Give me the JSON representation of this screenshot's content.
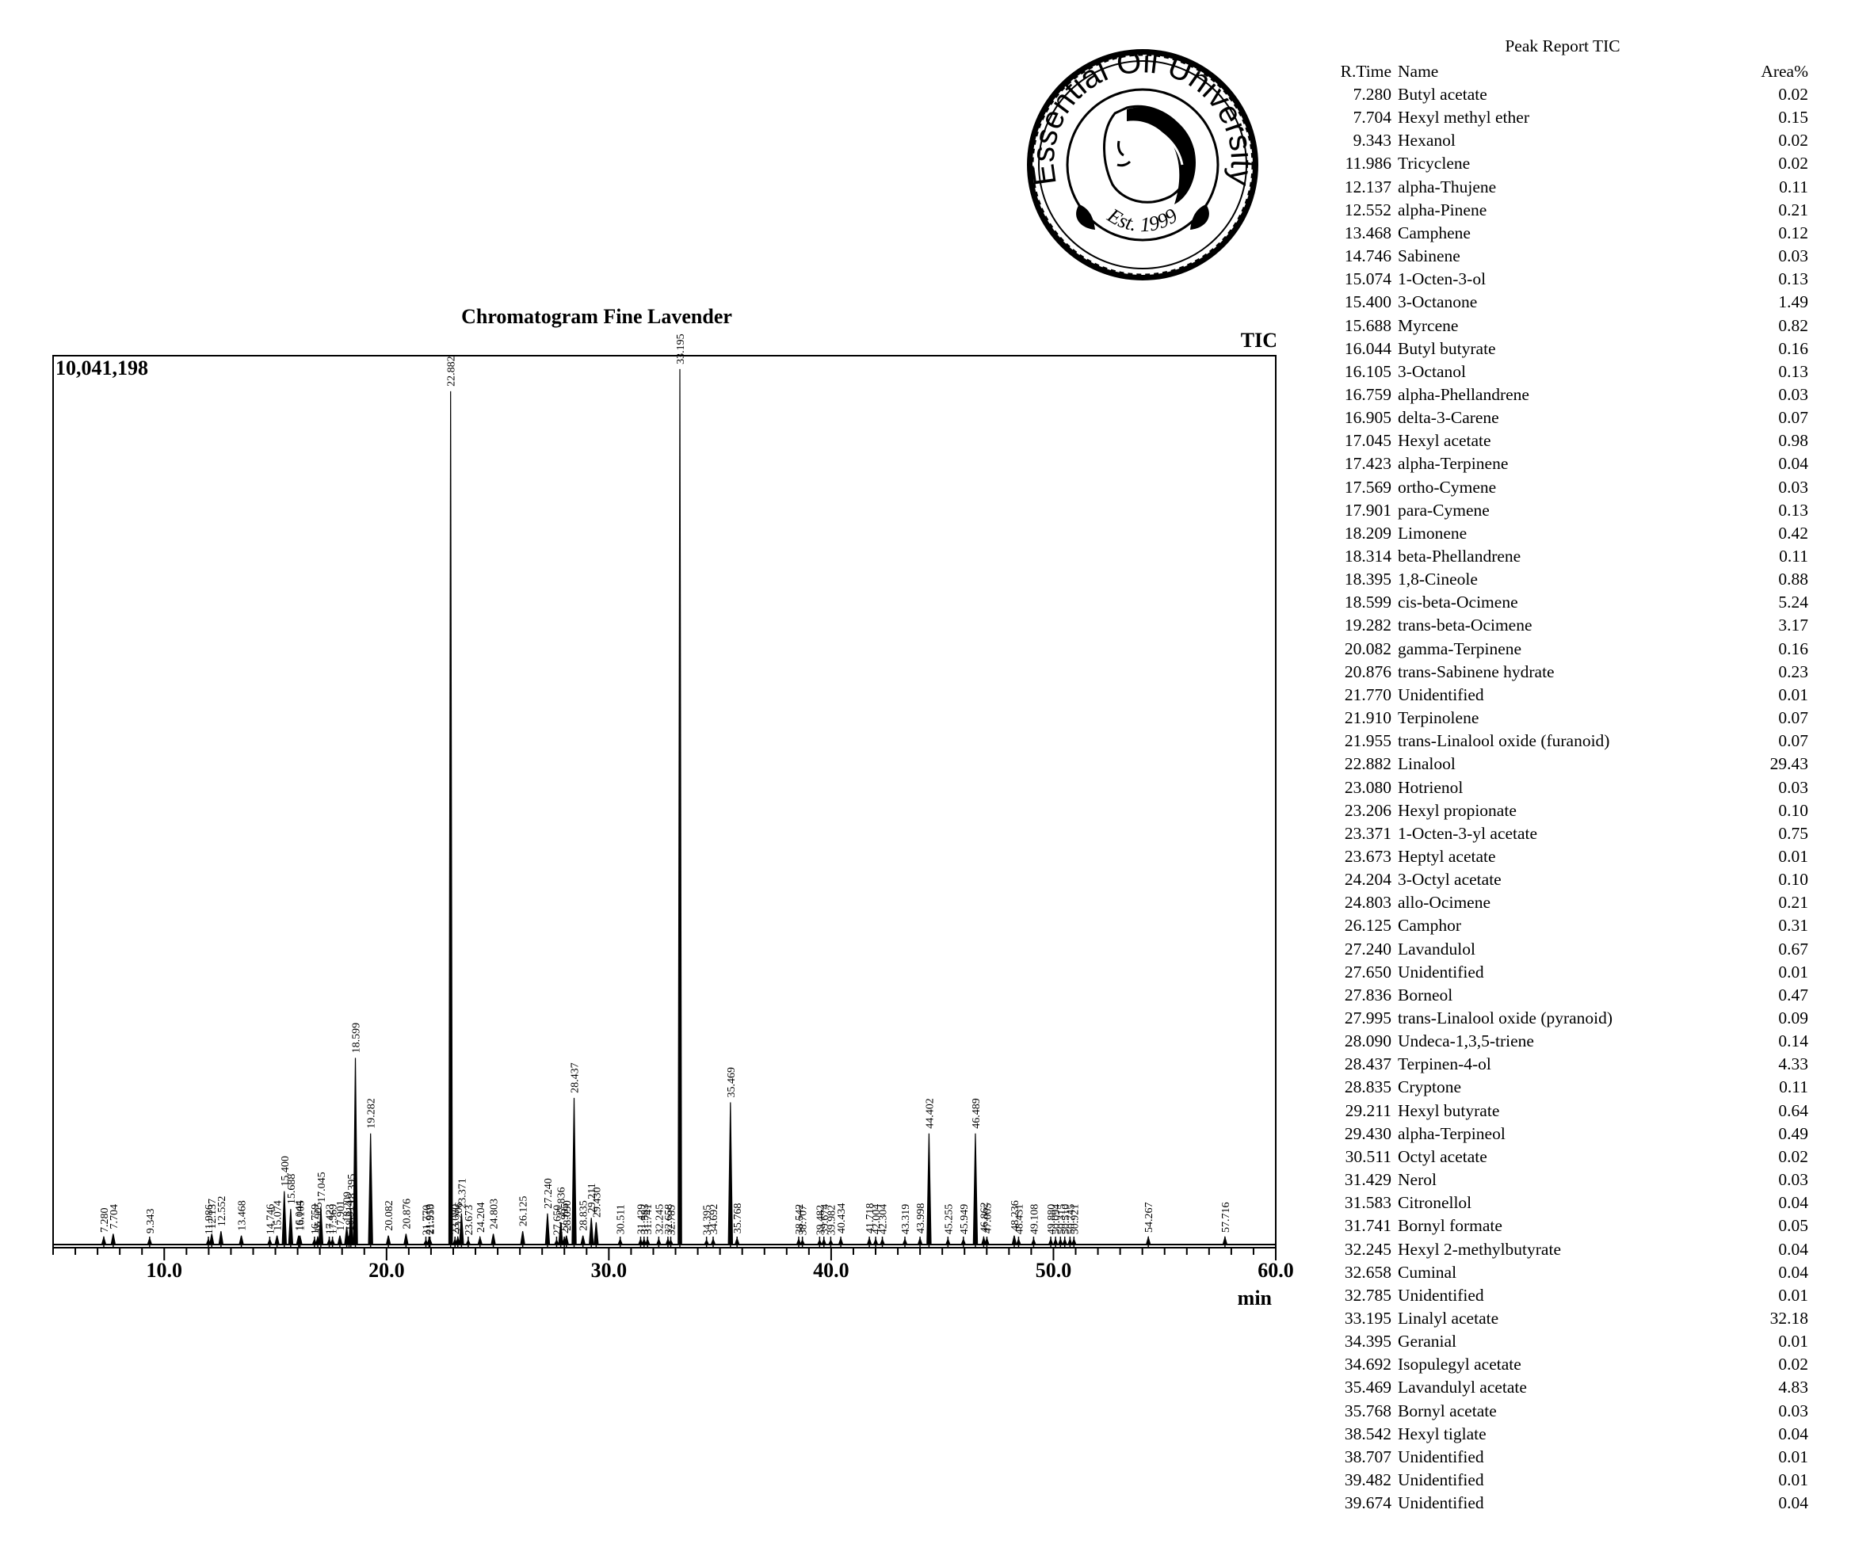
{
  "logo": {
    "arc_text": "Essential Oil University",
    "established": "Est. 1999"
  },
  "chart_data": {
    "type": "line",
    "title": "Chromatogram Fine Lavender",
    "signal": "TIC",
    "y_max_label": "10,041,198",
    "xlabel": "min",
    "xlim": [
      5.0,
      60.0
    ],
    "ylim": [
      0,
      10041198
    ],
    "x_tick_labels": [
      "10.0",
      "20.0",
      "30.0",
      "40.0",
      "50.0",
      "60.0"
    ],
    "x_ticks": [
      10,
      20,
      30,
      40,
      50,
      60
    ],
    "peaks": [
      {
        "t": 7.28,
        "label": "7.280",
        "h": 0.008
      },
      {
        "t": 7.704,
        "label": "7.704",
        "h": 0.012
      },
      {
        "t": 9.343,
        "label": "9.343",
        "h": 0.007
      },
      {
        "t": 11.986,
        "label": "11.986",
        "h": 0.006
      },
      {
        "t": 12.137,
        "label": "12.137",
        "h": 0.012
      },
      {
        "t": 12.552,
        "label": "12.552",
        "h": 0.015
      },
      {
        "t": 13.468,
        "label": "13.468",
        "h": 0.01
      },
      {
        "t": 14.746,
        "label": "14.746",
        "h": 0.006
      },
      {
        "t": 15.074,
        "label": "15.074",
        "h": 0.01
      },
      {
        "t": 15.4,
        "label": "15.400",
        "h": 0.06
      },
      {
        "t": 15.688,
        "label": "15.688",
        "h": 0.04
      },
      {
        "t": 16.044,
        "label": "16.044",
        "h": 0.01
      },
      {
        "t": 16.105,
        "label": "16.105",
        "h": 0.01
      },
      {
        "t": 16.759,
        "label": "16.759",
        "h": 0.006
      },
      {
        "t": 16.905,
        "label": "16.905",
        "h": 0.008
      },
      {
        "t": 17.045,
        "label": "17.045",
        "h": 0.042
      },
      {
        "t": 17.423,
        "label": "17.423",
        "h": 0.006
      },
      {
        "t": 17.569,
        "label": "17.569",
        "h": 0.006
      },
      {
        "t": 17.901,
        "label": "17.901",
        "h": 0.01
      },
      {
        "t": 18.209,
        "label": "18.209",
        "h": 0.02
      },
      {
        "t": 18.314,
        "label": "18.314",
        "h": 0.01
      },
      {
        "t": 18.395,
        "label": "18.395",
        "h": 0.04
      },
      {
        "t": 18.599,
        "label": "18.599",
        "h": 0.21
      },
      {
        "t": 19.282,
        "label": "19.282",
        "h": 0.125
      },
      {
        "t": 20.082,
        "label": "20.082",
        "h": 0.01
      },
      {
        "t": 20.876,
        "label": "20.876",
        "h": 0.012
      },
      {
        "t": 21.77,
        "label": "21.770",
        "h": 0.005
      },
      {
        "t": 21.91,
        "label": "21.910",
        "h": 0.006
      },
      {
        "t": 21.955,
        "label": "21.955",
        "h": 0.006
      },
      {
        "t": 22.882,
        "label": "22.882",
        "h": 0.96
      },
      {
        "t": 23.08,
        "label": "23.080",
        "h": 0.006
      },
      {
        "t": 23.206,
        "label": "23.206",
        "h": 0.008
      },
      {
        "t": 23.371,
        "label": "23.371",
        "h": 0.035
      },
      {
        "t": 23.673,
        "label": "23.673",
        "h": 0.005
      },
      {
        "t": 24.204,
        "label": "24.204",
        "h": 0.008
      },
      {
        "t": 24.803,
        "label": "24.803",
        "h": 0.012
      },
      {
        "t": 26.125,
        "label": "26.125",
        "h": 0.015
      },
      {
        "t": 27.24,
        "label": "27.240",
        "h": 0.035
      },
      {
        "t": 27.65,
        "label": "27.650",
        "h": 0.005
      },
      {
        "t": 27.836,
        "label": "27.836",
        "h": 0.025
      },
      {
        "t": 27.995,
        "label": "27.995",
        "h": 0.007
      },
      {
        "t": 28.09,
        "label": "28.090",
        "h": 0.01
      },
      {
        "t": 28.437,
        "label": "28.437",
        "h": 0.165
      },
      {
        "t": 28.835,
        "label": "28.835",
        "h": 0.01
      },
      {
        "t": 29.211,
        "label": "29.211",
        "h": 0.03
      },
      {
        "t": 29.43,
        "label": "29.430",
        "h": 0.025
      },
      {
        "t": 30.511,
        "label": "30.511",
        "h": 0.006
      },
      {
        "t": 31.429,
        "label": "31.429",
        "h": 0.006
      },
      {
        "t": 31.583,
        "label": "31.583",
        "h": 0.006
      },
      {
        "t": 31.741,
        "label": "31.741",
        "h": 0.006
      },
      {
        "t": 32.245,
        "label": "32.245",
        "h": 0.006
      },
      {
        "t": 32.658,
        "label": "32.658",
        "h": 0.006
      },
      {
        "t": 32.785,
        "label": "32.785",
        "h": 0.005
      },
      {
        "t": 33.195,
        "label": "33.195",
        "h": 0.985
      },
      {
        "t": 34.395,
        "label": "34.395",
        "h": 0.005
      },
      {
        "t": 34.692,
        "label": "34.692",
        "h": 0.006
      },
      {
        "t": 35.469,
        "label": "35.469",
        "h": 0.16
      },
      {
        "t": 35.768,
        "label": "35.768",
        "h": 0.007
      },
      {
        "t": 38.542,
        "label": "38.542",
        "h": 0.006
      },
      {
        "t": 38.707,
        "label": "38.707",
        "h": 0.005
      },
      {
        "t": 39.482,
        "label": "39.482",
        "h": 0.005
      },
      {
        "t": 39.674,
        "label": "39.674",
        "h": 0.006
      },
      {
        "t": 39.982,
        "label": "39.982",
        "h": 0.005
      },
      {
        "t": 40.434,
        "label": "40.434",
        "h": 0.007
      },
      {
        "t": 41.718,
        "label": "41.718",
        "h": 0.007
      },
      {
        "t": 42.004,
        "label": "42.004",
        "h": 0.006
      },
      {
        "t": 42.304,
        "label": "42.304",
        "h": 0.006
      },
      {
        "t": 43.319,
        "label": "43.319",
        "h": 0.006
      },
      {
        "t": 43.998,
        "label": "43.998",
        "h": 0.007
      },
      {
        "t": 44.402,
        "label": "44.402",
        "h": 0.125
      },
      {
        "t": 45.255,
        "label": "45.255",
        "h": 0.006
      },
      {
        "t": 45.949,
        "label": "45.949",
        "h": 0.006
      },
      {
        "t": 46.489,
        "label": "46.489",
        "h": 0.125
      },
      {
        "t": 46.862,
        "label": "46.862",
        "h": 0.008
      },
      {
        "t": 47.005,
        "label": "47.005",
        "h": 0.007
      },
      {
        "t": 48.236,
        "label": "48.236",
        "h": 0.01
      },
      {
        "t": 48.431,
        "label": "48.431",
        "h": 0.006
      },
      {
        "t": 49.108,
        "label": "49.108",
        "h": 0.006
      },
      {
        "t": 49.88,
        "label": "49.880",
        "h": 0.006
      },
      {
        "t": 50.094,
        "label": "50.094",
        "h": 0.006
      },
      {
        "t": 50.315,
        "label": "50.315",
        "h": 0.006
      },
      {
        "t": 50.51,
        "label": "50.510",
        "h": 0.006
      },
      {
        "t": 50.745,
        "label": "50.745",
        "h": 0.006
      },
      {
        "t": 50.921,
        "label": "50.921",
        "h": 0.006
      },
      {
        "t": 54.267,
        "label": "54.267",
        "h": 0.008
      },
      {
        "t": 57.716,
        "label": "57.716",
        "h": 0.008
      }
    ]
  },
  "peak_report": {
    "title": "Peak Report TIC",
    "columns": [
      "R.Time",
      "Name",
      "Area%"
    ],
    "rows": [
      [
        "7.280",
        "Butyl acetate",
        "0.02"
      ],
      [
        "7.704",
        "Hexyl methyl ether",
        "0.15"
      ],
      [
        "9.343",
        "Hexanol",
        "0.02"
      ],
      [
        "11.986",
        "Tricyclene",
        "0.02"
      ],
      [
        "12.137",
        "alpha-Thujene",
        "0.11"
      ],
      [
        "12.552",
        "alpha-Pinene",
        "0.21"
      ],
      [
        "13.468",
        "Camphene",
        "0.12"
      ],
      [
        "14.746",
        "Sabinene",
        "0.03"
      ],
      [
        "15.074",
        "1-Octen-3-ol",
        "0.13"
      ],
      [
        "15.400",
        "3-Octanone",
        "1.49"
      ],
      [
        "15.688",
        "Myrcene",
        "0.82"
      ],
      [
        "16.044",
        "Butyl butyrate",
        "0.16"
      ],
      [
        "16.105",
        "3-Octanol",
        "0.13"
      ],
      [
        "16.759",
        "alpha-Phellandrene",
        "0.03"
      ],
      [
        "16.905",
        "delta-3-Carene",
        "0.07"
      ],
      [
        "17.045",
        "Hexyl acetate",
        "0.98"
      ],
      [
        "17.423",
        "alpha-Terpinene",
        "0.04"
      ],
      [
        "17.569",
        "ortho-Cymene",
        "0.03"
      ],
      [
        "17.901",
        "para-Cymene",
        "0.13"
      ],
      [
        "18.209",
        "Limonene",
        "0.42"
      ],
      [
        "18.314",
        "beta-Phellandrene",
        "0.11"
      ],
      [
        "18.395",
        "1,8-Cineole",
        "0.88"
      ],
      [
        "18.599",
        "cis-beta-Ocimene",
        "5.24"
      ],
      [
        "19.282",
        "trans-beta-Ocimene",
        "3.17"
      ],
      [
        "20.082",
        "gamma-Terpinene",
        "0.16"
      ],
      [
        "20.876",
        "trans-Sabinene hydrate",
        "0.23"
      ],
      [
        "21.770",
        "Unidentified",
        "0.01"
      ],
      [
        "21.910",
        "Terpinolene",
        "0.07"
      ],
      [
        "21.955",
        "trans-Linalool oxide (furanoid)",
        "0.07"
      ],
      [
        "22.882",
        "Linalool",
        "29.43"
      ],
      [
        "23.080",
        "Hotrienol",
        "0.03"
      ],
      [
        "23.206",
        "Hexyl propionate",
        "0.10"
      ],
      [
        "23.371",
        "1-Octen-3-yl acetate",
        "0.75"
      ],
      [
        "23.673",
        "Heptyl acetate",
        "0.01"
      ],
      [
        "24.204",
        "3-Octyl acetate",
        "0.10"
      ],
      [
        "24.803",
        "allo-Ocimene",
        "0.21"
      ],
      [
        "26.125",
        "Camphor",
        "0.31"
      ],
      [
        "27.240",
        "Lavandulol",
        "0.67"
      ],
      [
        "27.650",
        "Unidentified",
        "0.01"
      ],
      [
        "27.836",
        "Borneol",
        "0.47"
      ],
      [
        "27.995",
        "trans-Linalool oxide (pyranoid)",
        "0.09"
      ],
      [
        "28.090",
        "Undeca-1,3,5-triene",
        "0.14"
      ],
      [
        "28.437",
        "Terpinen-4-ol",
        "4.33"
      ],
      [
        "28.835",
        "Cryptone",
        "0.11"
      ],
      [
        "29.211",
        "Hexyl butyrate",
        "0.64"
      ],
      [
        "29.430",
        "alpha-Terpineol",
        "0.49"
      ],
      [
        "30.511",
        "Octyl acetate",
        "0.02"
      ],
      [
        "31.429",
        "Nerol",
        "0.03"
      ],
      [
        "31.583",
        "Citronellol",
        "0.04"
      ],
      [
        "31.741",
        "Bornyl formate",
        "0.05"
      ],
      [
        "32.245",
        "Hexyl 2-methylbutyrate",
        "0.04"
      ],
      [
        "32.658",
        "Cuminal",
        "0.04"
      ],
      [
        "32.785",
        "Unidentified",
        "0.01"
      ],
      [
        "33.195",
        "Linalyl acetate",
        "32.18"
      ],
      [
        "34.395",
        "Geranial",
        "0.01"
      ],
      [
        "34.692",
        "Isopulegyl acetate",
        "0.02"
      ],
      [
        "35.469",
        "Lavandulyl acetate",
        "4.83"
      ],
      [
        "35.768",
        "Bornyl acetate",
        "0.03"
      ],
      [
        "38.542",
        "Hexyl tiglate",
        "0.04"
      ],
      [
        "38.707",
        "Unidentified",
        "0.01"
      ],
      [
        "39.482",
        "Unidentified",
        "0.01"
      ],
      [
        "39.674",
        "Unidentified",
        "0.04"
      ]
    ]
  }
}
